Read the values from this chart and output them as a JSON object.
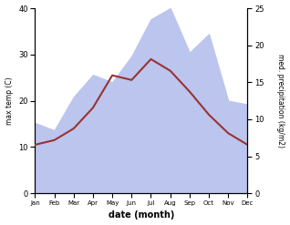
{
  "months": [
    "Jan",
    "Feb",
    "Mar",
    "Apr",
    "May",
    "Jun",
    "Jul",
    "Aug",
    "Sep",
    "Oct",
    "Nov",
    "Dec"
  ],
  "max_temp": [
    10.5,
    11.5,
    14.0,
    18.5,
    25.5,
    24.5,
    29.0,
    26.5,
    22.0,
    17.0,
    13.0,
    10.5
  ],
  "precipitation": [
    9.5,
    8.5,
    13.0,
    16.0,
    15.0,
    18.5,
    23.5,
    25.0,
    19.0,
    21.5,
    12.5,
    12.0
  ],
  "temp_color": "#993333",
  "precip_fill_color": "#bcc5ee",
  "ylabel_left": "max temp (C)",
  "ylabel_right": "med. precipitation (kg/m2)",
  "xlabel": "date (month)",
  "ylim_left": [
    0,
    40
  ],
  "ylim_right": [
    0,
    25
  ],
  "background_color": "#ffffff"
}
